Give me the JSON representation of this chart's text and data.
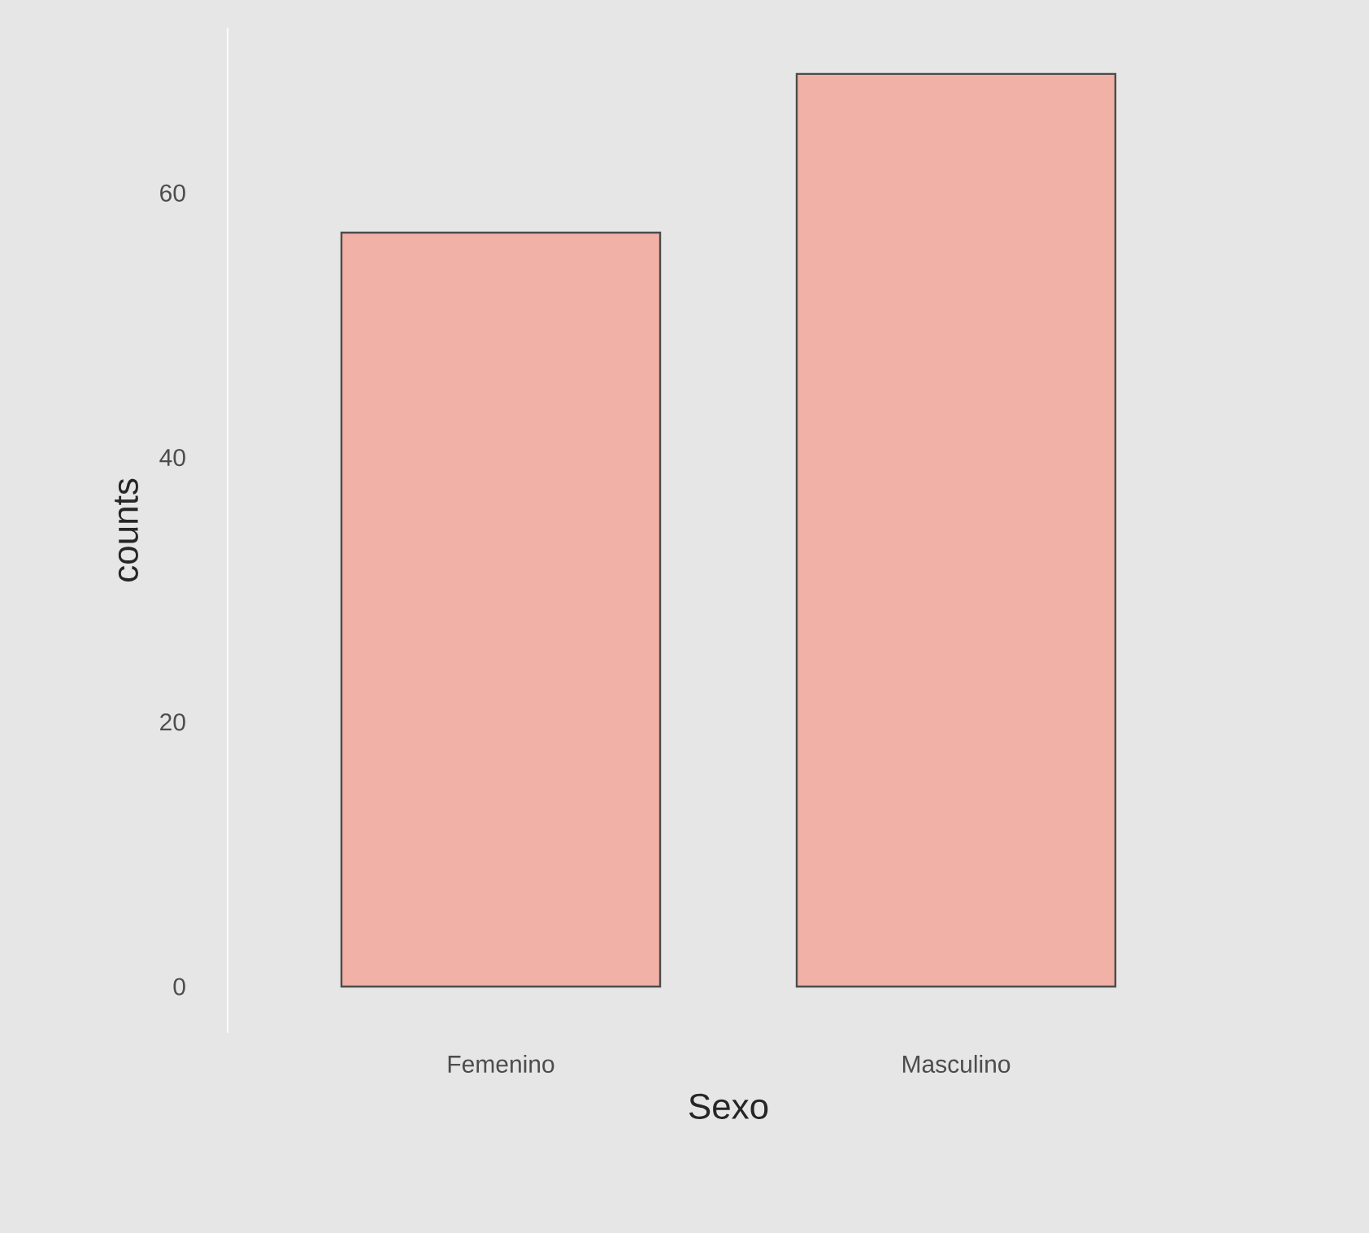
{
  "chart_data": {
    "type": "bar",
    "xlabel": "Sexo",
    "ylabel": "counts",
    "categories": [
      "Femenino",
      "Masculino"
    ],
    "values": [
      57,
      69
    ],
    "color": "#f1b1a6",
    "ylim": [
      -3.5,
      72.5
    ],
    "yticks": [
      0,
      20,
      40,
      60
    ]
  }
}
